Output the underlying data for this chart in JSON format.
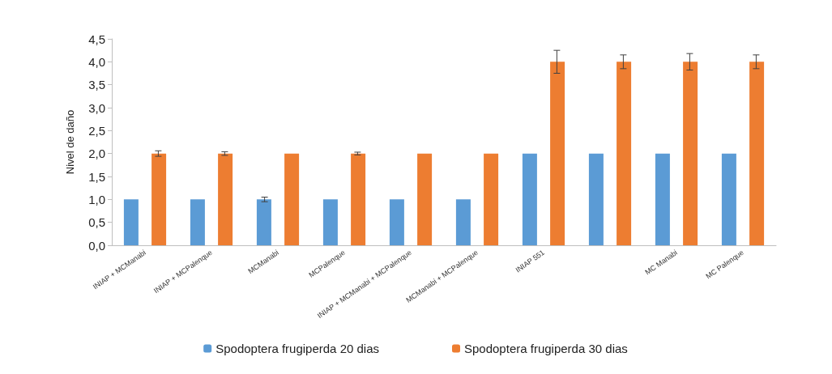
{
  "chart_data": {
    "type": "bar",
    "ylabel": "Nivel de daño",
    "categories": [
      "INIAP + MCManabi",
      "INIAP + MCPalenque",
      "MCManabi",
      "MCPalenque",
      "INIAP + MCManabi + MCPalenque",
      "MCManabi + MCPalenque",
      "INIAP 551",
      null,
      "MC Manabi",
      "MC Palenque"
    ],
    "series": [
      {
        "name": "Spodoptera frugiperda 20 dias",
        "color": "#5b9bd5",
        "values": [
          1,
          1,
          1,
          1,
          1,
          1,
          2,
          2,
          2,
          2
        ],
        "errors": [
          null,
          null,
          0.05,
          null,
          null,
          null,
          null,
          null,
          null,
          null
        ]
      },
      {
        "name": "Spodoptera frugiperda 30 dias",
        "color": "#ed7d31",
        "values": [
          2,
          2,
          2,
          2,
          2,
          2,
          4,
          4,
          4,
          4
        ],
        "errors": [
          0.06,
          0.04,
          null,
          0.03,
          null,
          null,
          0.25,
          0.15,
          0.18,
          0.15
        ]
      }
    ],
    "ylim": [
      0,
      4.5
    ],
    "yticks": [
      {
        "value": 0,
        "label": "0,0"
      },
      {
        "value": 0.5,
        "label": "0,5"
      },
      {
        "value": 1,
        "label": "1,0"
      },
      {
        "value": 1.5,
        "label": "1,5"
      },
      {
        "value": 2,
        "label": "2,0"
      },
      {
        "value": 2.5,
        "label": "2,5"
      },
      {
        "value": 3,
        "label": "3,0"
      },
      {
        "value": 3.5,
        "label": "3,5"
      },
      {
        "value": 4,
        "label": "4,0"
      },
      {
        "value": 4.5,
        "label": "4,5"
      }
    ],
    "grid": false,
    "legend": "bottom"
  }
}
